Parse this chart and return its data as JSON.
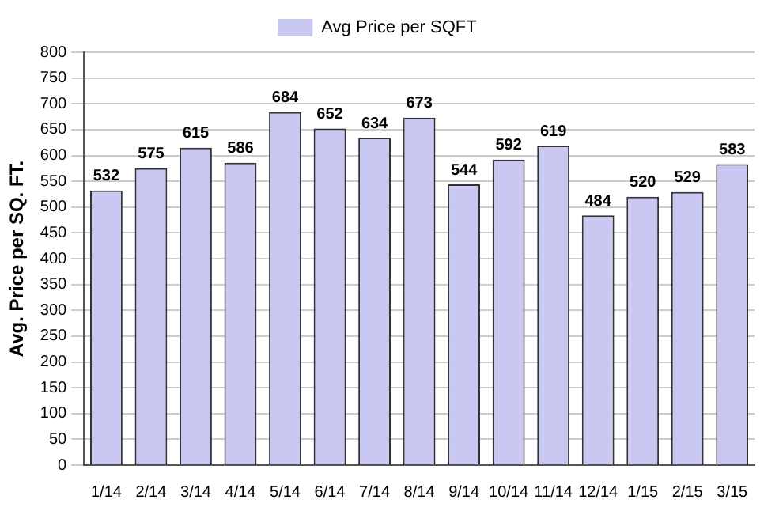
{
  "chart_data": {
    "type": "bar",
    "ylabel": "Avg. Price per SQ. FT.",
    "categories": [
      "1/14",
      "2/14",
      "3/14",
      "4/14",
      "5/14",
      "6/14",
      "7/14",
      "8/14",
      "9/14",
      "10/14",
      "11/14",
      "12/14",
      "1/15",
      "2/15",
      "3/15"
    ],
    "series": [
      {
        "name": "Avg Price per SQFT",
        "color": "#c8c8f2",
        "values": [
          532,
          575,
          615,
          586,
          684,
          652,
          634,
          673,
          544,
          592,
          619,
          484,
          520,
          529,
          583
        ]
      }
    ],
    "ylim": [
      0,
      800
    ],
    "yticks": [
      0,
      50,
      100,
      150,
      200,
      250,
      300,
      350,
      400,
      450,
      500,
      550,
      600,
      650,
      700,
      750,
      800
    ],
    "grid": "y",
    "legend": "top",
    "data_labels": true
  }
}
